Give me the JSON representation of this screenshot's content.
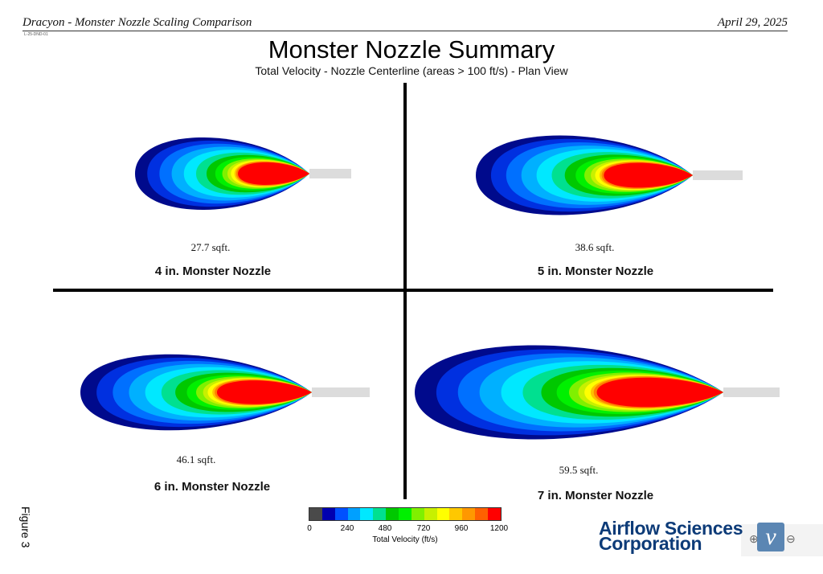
{
  "header": {
    "left": "Dracyon - Monster Nozzle Scaling Comparison",
    "right": "April 29, 2025",
    "doc_id": "L-25-DND-01"
  },
  "title": "Monster Nozzle Summary",
  "subtitle": "Total Velocity - Nozzle Centerline (areas > 100 ft/s) - Plan View",
  "panels": [
    {
      "caption": "4 in. Monster Nozzle",
      "area": "27.7 sqft."
    },
    {
      "caption": "5 in. Monster Nozzle",
      "area": "38.6 sqft."
    },
    {
      "caption": "6 in. Monster Nozzle",
      "area": "46.1 sqft."
    },
    {
      "caption": "7 in. Monster Nozzle",
      "area": "59.5 sqft."
    }
  ],
  "figure_label": "Figure 3",
  "colorbar": {
    "title": "Total Velocity (ft/s)",
    "ticks": [
      "0",
      "240",
      "480",
      "720",
      "960",
      "1200"
    ],
    "colors": [
      "#4a4a4a",
      "#0000b0",
      "#0050ff",
      "#00a0ff",
      "#00e8ff",
      "#00e090",
      "#00c800",
      "#00f000",
      "#80f000",
      "#c8f000",
      "#ffff00",
      "#ffc800",
      "#ff9800",
      "#ff6000",
      "#ff0000"
    ]
  },
  "logo": {
    "line1": "Airflow Sciences",
    "line2": "Corporation",
    "icon": "v"
  }
}
